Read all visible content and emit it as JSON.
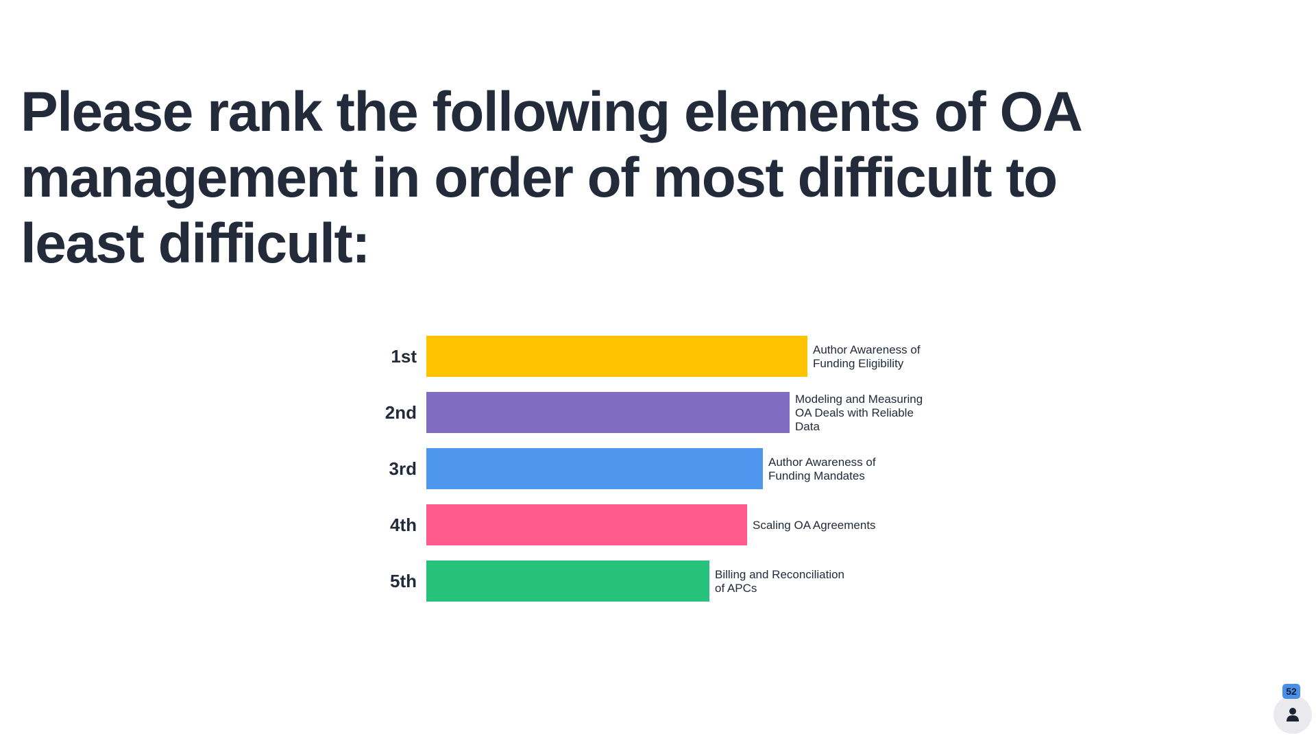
{
  "question": {
    "title": "Please rank the following elements of OA management in order of most difficult to least difficult:"
  },
  "participants": {
    "count": "52",
    "icon": "person-icon"
  },
  "chart_data": {
    "type": "bar",
    "orientation": "horizontal",
    "categories": [
      "1st",
      "2nd",
      "3rd",
      "4th",
      "5th"
    ],
    "items": [
      "Author Awareness of Funding Eligibility",
      "Modeling and Measuring OA Deals with Reliable Data",
      "Author Awareness of Funding Mandates",
      "Scaling OA Agreements",
      "Billing and Reconciliation of APCs"
    ],
    "values": [
      1.0,
      0.953,
      0.883,
      0.842,
      0.743
    ],
    "colors": [
      "#FFC300",
      "#806CC0",
      "#4F97EE",
      "#FF5C8D",
      "#26C27C"
    ],
    "title": "",
    "xlabel": "",
    "ylabel": "",
    "grid": false,
    "legend": "none"
  }
}
